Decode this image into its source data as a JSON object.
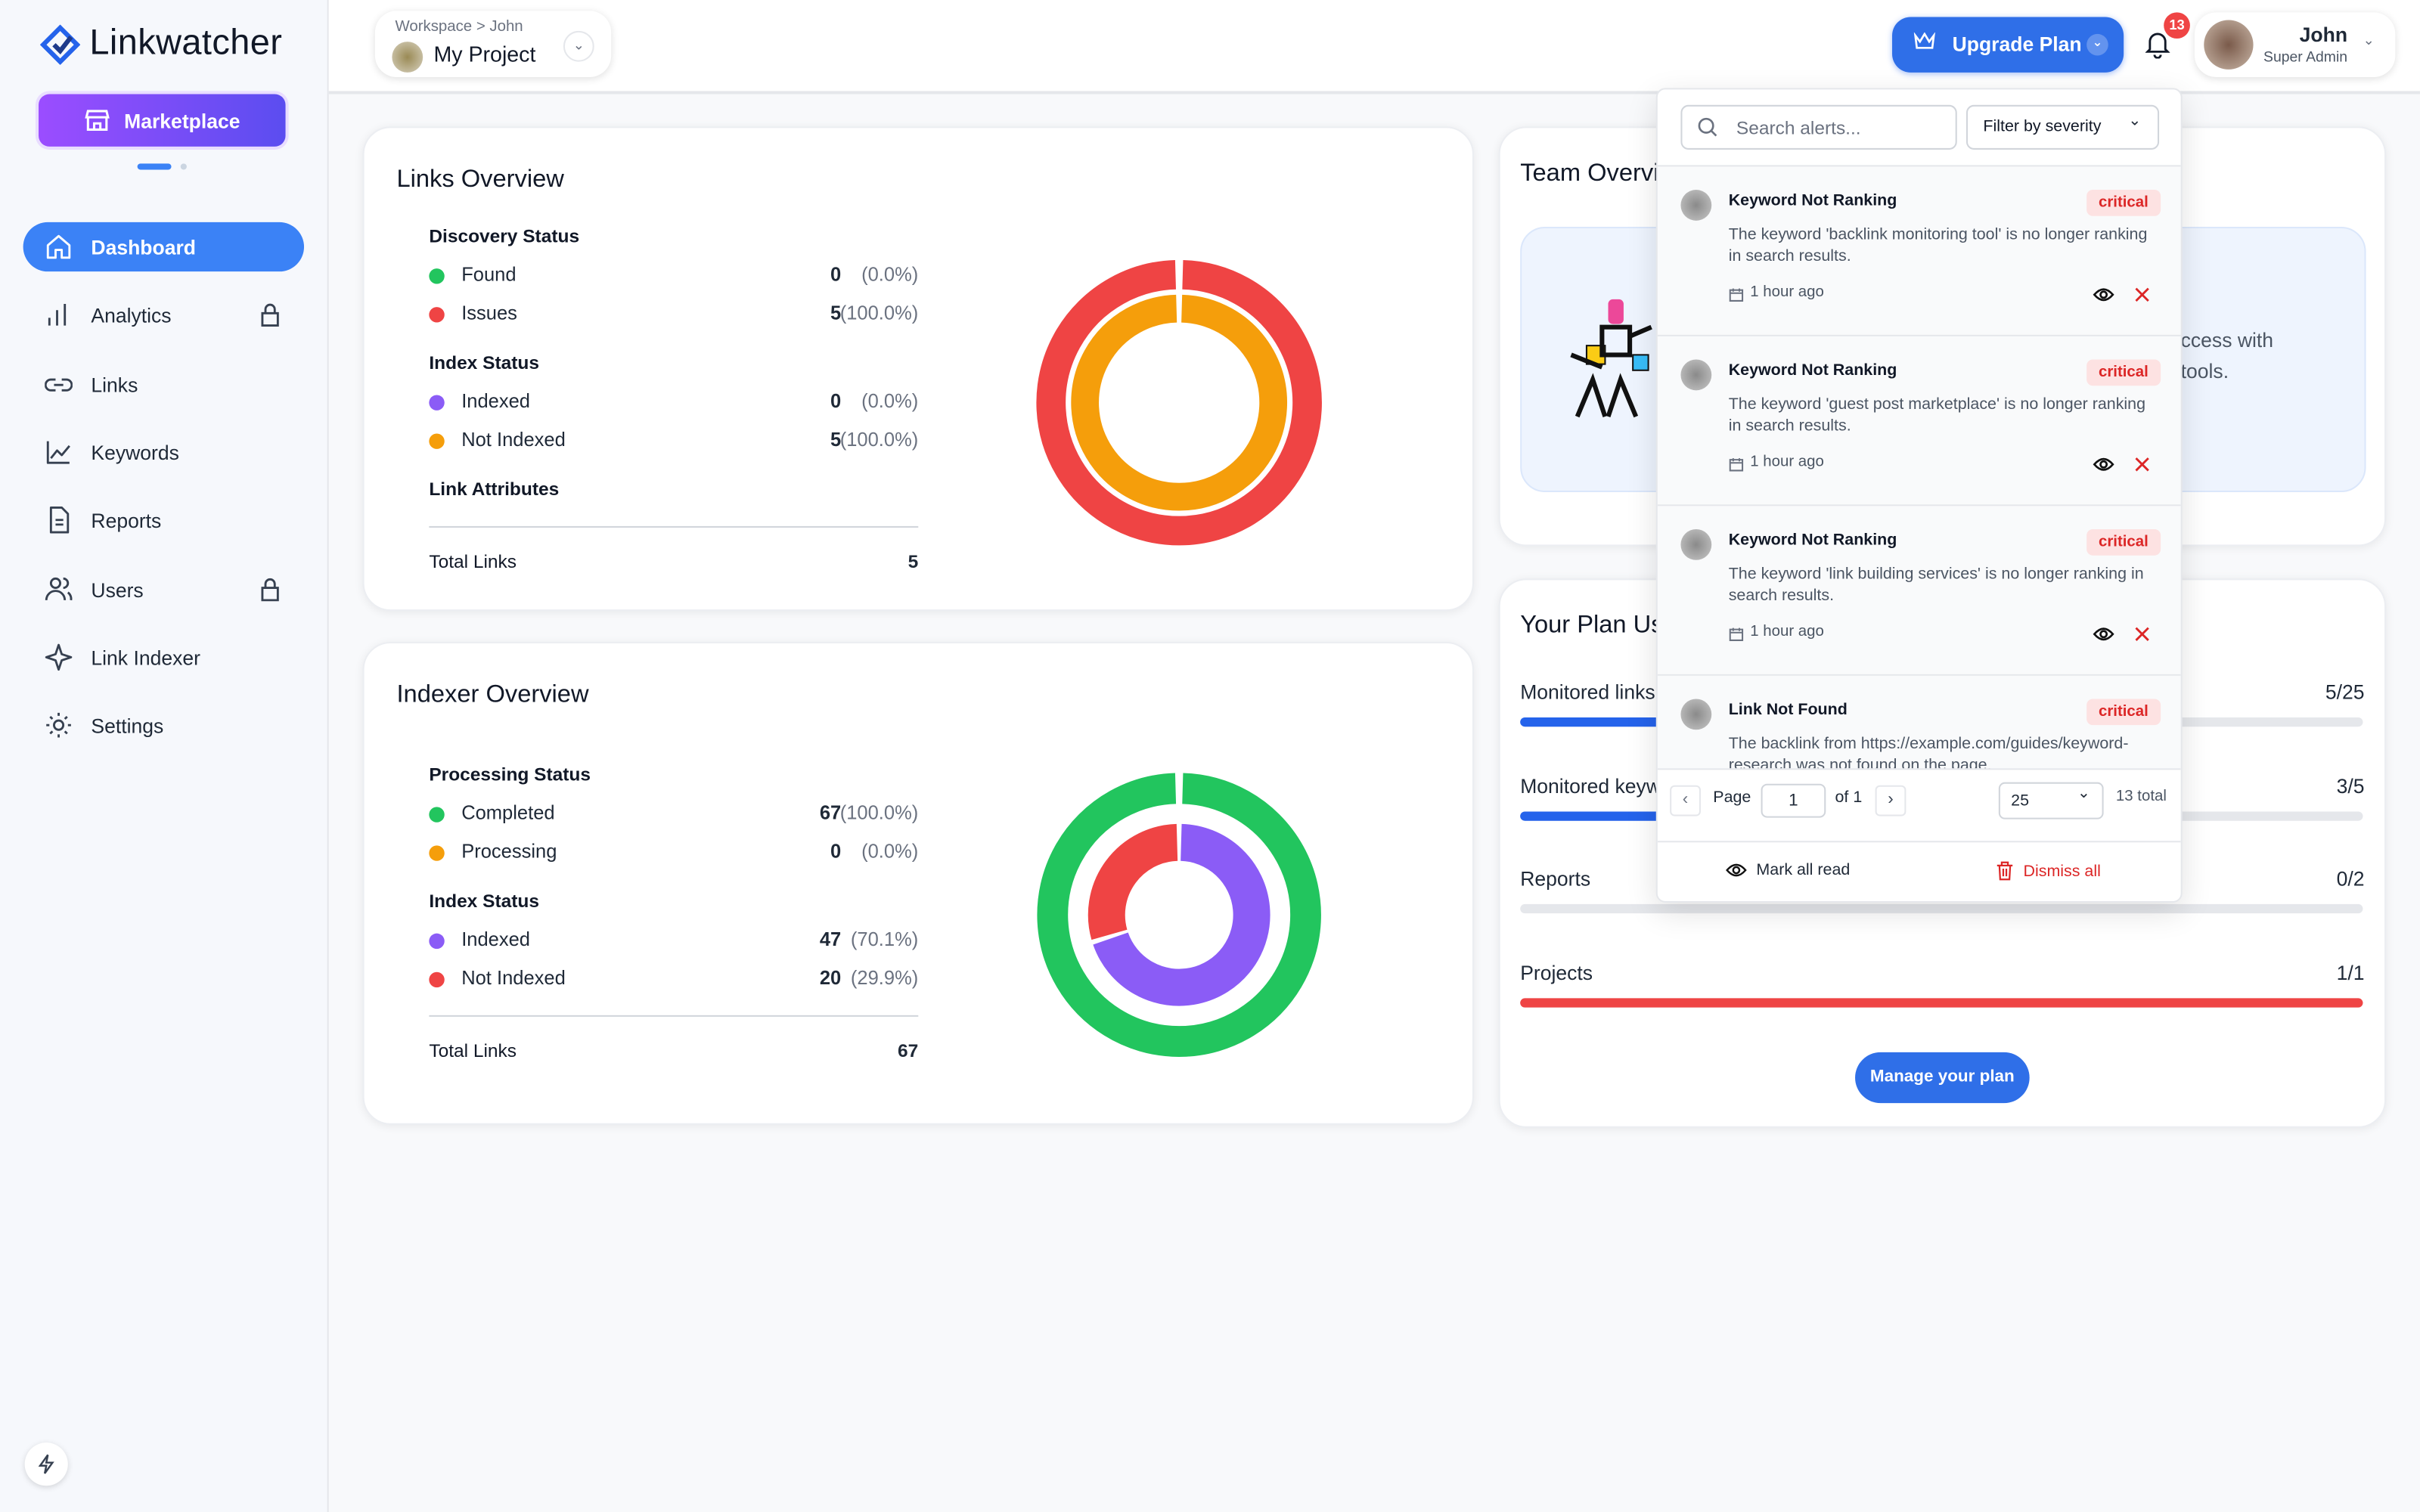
{
  "sidebar": {
    "brand": "Linkwatcher",
    "marketplace": "Marketplace",
    "nav": [
      {
        "label": "Dashboard",
        "active": true
      },
      {
        "label": "Analytics",
        "locked": true
      },
      {
        "label": "Links"
      },
      {
        "label": "Keywords"
      },
      {
        "label": "Reports"
      },
      {
        "label": "Users",
        "locked": true
      },
      {
        "label": "Link Indexer"
      },
      {
        "label": "Settings"
      }
    ]
  },
  "header": {
    "breadcrumb": "Workspace > John",
    "project": "My Project",
    "upgrade": "Upgrade Plan",
    "notification_count": 13,
    "user": {
      "name": "John",
      "role": "Super Admin"
    }
  },
  "links_overview": {
    "title": "Links Overview",
    "groups": [
      {
        "title": "Discovery Status",
        "items": [
          {
            "label": "Found",
            "count": 0,
            "percent": "(0.0%)",
            "color": "#22c55e"
          },
          {
            "label": "Issues",
            "count": 5,
            "percent": "(100.0%)",
            "color": "#ef4444"
          }
        ]
      },
      {
        "title": "Index Status",
        "items": [
          {
            "label": "Indexed",
            "count": 0,
            "percent": "(0.0%)",
            "color": "#8b5cf6"
          },
          {
            "label": "Not Indexed",
            "count": 5,
            "percent": "(100.0%)",
            "color": "#f59e0b"
          }
        ]
      },
      {
        "title": "Link Attributes",
        "items": []
      }
    ],
    "total_label": "Total Links",
    "total": 5
  },
  "indexer_overview": {
    "title": "Indexer Overview",
    "groups": [
      {
        "title": "Processing Status",
        "items": [
          {
            "label": "Completed",
            "count": 67,
            "percent": "(100.0%)",
            "color": "#22c55e"
          },
          {
            "label": "Processing",
            "count": 0,
            "percent": "(0.0%)",
            "color": "#f59e0b"
          }
        ]
      },
      {
        "title": "Index Status",
        "items": [
          {
            "label": "Indexed",
            "count": 47,
            "percent": "(70.1%)",
            "color": "#8b5cf6"
          },
          {
            "label": "Not Indexed",
            "count": 20,
            "percent": "(29.9%)",
            "color": "#ef4444"
          }
        ]
      }
    ],
    "total_label": "Total Links",
    "total": 67
  },
  "team_overview": {
    "title": "Team Overview",
    "description_lines": [
      "ccess with",
      "tools."
    ]
  },
  "plan_usage": {
    "title": "Your Plan Usage",
    "rows": [
      {
        "label": "Monitored links",
        "usage": "5/25",
        "color": "#2563eb"
      },
      {
        "label": "Monitored keywords",
        "usage": "3/5",
        "color": "#2563eb"
      },
      {
        "label": "Reports",
        "usage": "0/2",
        "color": "#2563eb"
      },
      {
        "label": "Projects",
        "usage": "1/1",
        "color": "#ef4444"
      }
    ],
    "button": "Manage your plan"
  },
  "alerts": {
    "search_placeholder": "Search alerts...",
    "filter": "Filter by severity",
    "items": [
      {
        "title": "Keyword Not Ranking",
        "severity": "critical",
        "message": "The keyword 'backlink monitoring tool' is no longer ranking in search results.",
        "time": "1 hour ago"
      },
      {
        "title": "Keyword Not Ranking",
        "severity": "critical",
        "message": "The keyword 'guest post marketplace' is no longer ranking in search results.",
        "time": "1 hour ago"
      },
      {
        "title": "Keyword Not Ranking",
        "severity": "critical",
        "message": "The keyword 'link building services' is no longer ranking in search results.",
        "time": "1 hour ago"
      },
      {
        "title": "Link Not Found",
        "severity": "critical",
        "message": "The backlink from https://example.com/guides/keyword-research was not found on the page."
      }
    ],
    "pagination": {
      "page_label": "Page",
      "page": 1,
      "of": "of 1",
      "per_page": 25,
      "total": "13 total"
    },
    "mark_all": "Mark all read",
    "dismiss_all": "Dismiss all"
  }
}
